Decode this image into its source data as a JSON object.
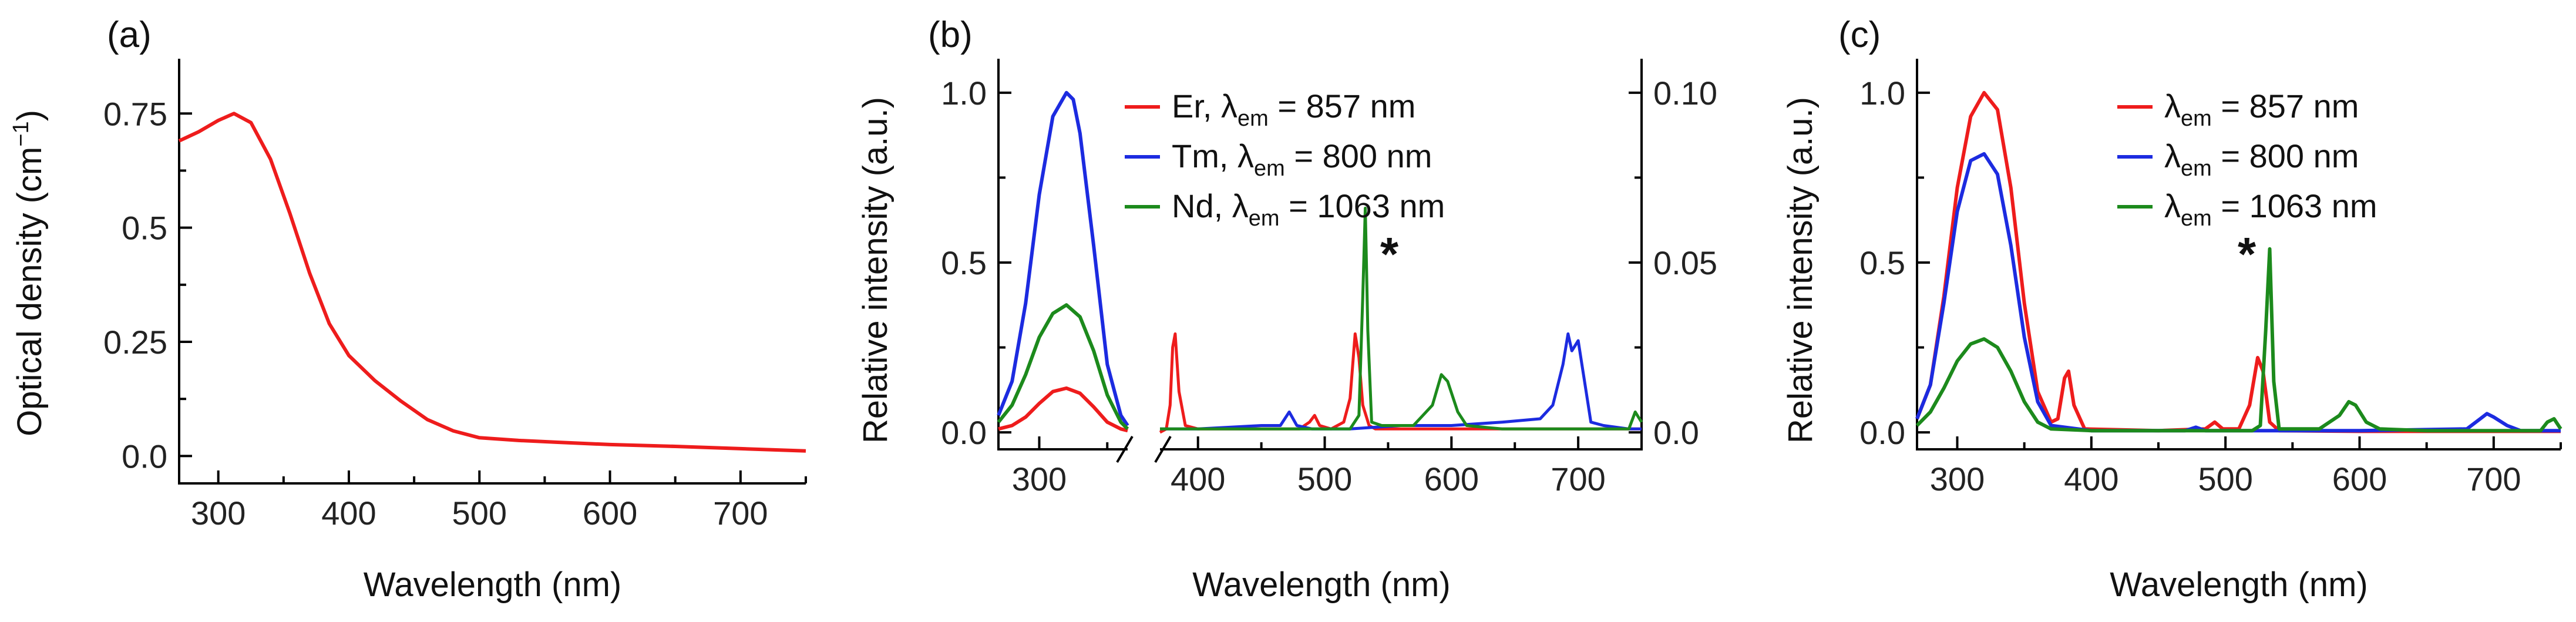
{
  "figure": {
    "colors": {
      "red": "#ee1c1c",
      "blue": "#1c2be0",
      "green": "#1c8a1c",
      "axis": "#000000"
    }
  },
  "chart_data": [
    {
      "type": "line",
      "panel": "(a)",
      "xlabel": "Wavelength (nm)",
      "ylabel": "Optical density (cm",
      "ylabel_sup": "−1",
      "ylabel_close": ")",
      "xlim": [
        270,
        750
      ],
      "ylim": [
        -0.06,
        0.87
      ],
      "xticks": [
        300,
        400,
        500,
        600,
        700
      ],
      "yticks": [
        0.0,
        0.25,
        0.5,
        0.75
      ],
      "ytick_labels": [
        "0.0",
        "0.25",
        "0.5",
        "0.75"
      ],
      "series": [
        {
          "name": "optical density",
          "color": "#ee1c1c",
          "x": [
            270,
            285,
            300,
            312,
            325,
            340,
            355,
            370,
            385,
            400,
            420,
            440,
            460,
            480,
            500,
            530,
            560,
            600,
            650,
            700,
            750
          ],
          "y": [
            0.69,
            0.71,
            0.735,
            0.75,
            0.73,
            0.65,
            0.53,
            0.4,
            0.29,
            0.22,
            0.165,
            0.12,
            0.08,
            0.055,
            0.04,
            0.034,
            0.03,
            0.025,
            0.021,
            0.016,
            0.011
          ]
        }
      ]
    },
    {
      "type": "line",
      "panel": "(b)",
      "xlabel": "Wavelength (nm)",
      "ylabel": "Relative intensity (a.u.)",
      "xlim_left": [
        270,
        365
      ],
      "xlim_right": [
        370,
        750
      ],
      "xticks_left": [
        300
      ],
      "xticks_right": [
        400,
        500,
        600,
        700
      ],
      "ylim": [
        -0.05,
        1.1
      ],
      "yticks": [
        0.0,
        0.5,
        1.0
      ],
      "ytick_labels": [
        "0.0",
        "0.5",
        "1.0"
      ],
      "ylim_right": [
        -0.005,
        0.11
      ],
      "yticks_right": [
        0.0,
        0.05,
        0.1
      ],
      "ytick_labels_right": [
        "0.0",
        "0.05",
        "0.10"
      ],
      "legend": [
        {
          "element": "Er",
          "sub": "em",
          "value": " = 857 nm",
          "color": "#ee1c1c"
        },
        {
          "element": "Tm",
          "sub": "em",
          "value": " = 800 nm",
          "color": "#1c2be0"
        },
        {
          "element": "Nd",
          "sub": "em",
          "value": " = 1063 nm",
          "color": "#1c8a1c"
        }
      ],
      "annotation": "*",
      "series_left": [
        {
          "name": "Er",
          "color": "#ee1c1c",
          "x": [
            270,
            280,
            290,
            300,
            310,
            320,
            330,
            340,
            350,
            360,
            365
          ],
          "y": [
            0.01,
            0.02,
            0.045,
            0.085,
            0.12,
            0.13,
            0.115,
            0.075,
            0.03,
            0.01,
            0.005
          ]
        },
        {
          "name": "Tm",
          "color": "#1c2be0",
          "x": [
            270,
            280,
            290,
            300,
            310,
            320,
            325,
            330,
            340,
            350,
            360,
            365
          ],
          "y": [
            0.05,
            0.15,
            0.38,
            0.7,
            0.93,
            1.0,
            0.98,
            0.88,
            0.55,
            0.2,
            0.05,
            0.02
          ]
        },
        {
          "name": "Nd",
          "color": "#1c8a1c",
          "x": [
            270,
            280,
            290,
            300,
            310,
            320,
            330,
            340,
            350,
            360,
            365
          ],
          "y": [
            0.03,
            0.08,
            0.17,
            0.28,
            0.35,
            0.375,
            0.34,
            0.24,
            0.11,
            0.03,
            0.01
          ]
        }
      ],
      "series_right": [
        {
          "name": "Er",
          "color": "#ee1c1c",
          "x": [
            370,
            375,
            378,
            380,
            382,
            385,
            390,
            400,
            450,
            480,
            488,
            492,
            496,
            505,
            515,
            520,
            524,
            527,
            530,
            535,
            540,
            600,
            700,
            750
          ],
          "y": [
            0.0,
            0.001,
            0.008,
            0.025,
            0.029,
            0.012,
            0.002,
            0.001,
            0.001,
            0.001,
            0.003,
            0.005,
            0.002,
            0.001,
            0.003,
            0.01,
            0.029,
            0.022,
            0.008,
            0.002,
            0.001,
            0.001,
            0.001,
            0.001
          ]
        },
        {
          "name": "Tm",
          "color": "#1c2be0",
          "x": [
            370,
            400,
            450,
            465,
            472,
            478,
            490,
            520,
            560,
            600,
            640,
            670,
            680,
            688,
            692,
            695,
            700,
            705,
            710,
            720,
            740,
            750
          ],
          "y": [
            0.001,
            0.001,
            0.002,
            0.002,
            0.006,
            0.002,
            0.001,
            0.001,
            0.002,
            0.002,
            0.003,
            0.004,
            0.008,
            0.02,
            0.029,
            0.024,
            0.027,
            0.015,
            0.003,
            0.002,
            0.001,
            0.001
          ]
        },
        {
          "name": "Nd",
          "color": "#1c8a1c",
          "x": [
            370,
            400,
            500,
            520,
            527,
            530,
            532,
            534,
            537,
            545,
            570,
            585,
            592,
            597,
            605,
            612,
            640,
            700,
            740,
            745,
            750
          ],
          "y": [
            0.001,
            0.001,
            0.001,
            0.001,
            0.005,
            0.04,
            0.066,
            0.03,
            0.003,
            0.002,
            0.002,
            0.008,
            0.017,
            0.015,
            0.006,
            0.002,
            0.001,
            0.001,
            0.001,
            0.006,
            0.003
          ]
        }
      ]
    },
    {
      "type": "line",
      "panel": "(c)",
      "xlabel": "Wavelength (nm)",
      "ylabel": "Relative intensity (a.u.)",
      "xlim": [
        270,
        750
      ],
      "ylim": [
        -0.05,
        1.1
      ],
      "xticks": [
        300,
        400,
        500,
        600,
        700
      ],
      "yticks": [
        0.0,
        0.5,
        1.0
      ],
      "ytick_labels": [
        "0.0",
        "0.5",
        "1.0"
      ],
      "legend": [
        {
          "element": "",
          "sub": "em",
          "value": " = 857 nm",
          "color": "#ee1c1c"
        },
        {
          "element": "",
          "sub": "em",
          "value": " = 800 nm",
          "color": "#1c2be0"
        },
        {
          "element": "",
          "sub": "em",
          "value": " = 1063 nm",
          "color": "#1c8a1c"
        }
      ],
      "annotation": "*",
      "series": [
        {
          "name": "λem = 857 nm",
          "color": "#ee1c1c",
          "x": [
            270,
            280,
            290,
            300,
            310,
            320,
            330,
            340,
            350,
            360,
            370,
            375,
            380,
            383,
            387,
            395,
            450,
            485,
            492,
            498,
            510,
            518,
            524,
            528,
            533,
            540,
            600,
            700,
            750
          ],
          "y": [
            0.04,
            0.14,
            0.4,
            0.72,
            0.93,
            1.0,
            0.95,
            0.72,
            0.38,
            0.12,
            0.03,
            0.04,
            0.16,
            0.18,
            0.08,
            0.01,
            0.005,
            0.01,
            0.03,
            0.01,
            0.01,
            0.08,
            0.22,
            0.18,
            0.03,
            0.005,
            0.003,
            0.003,
            0.003
          ]
        },
        {
          "name": "λem = 800 nm",
          "color": "#1c2be0",
          "x": [
            270,
            280,
            290,
            300,
            310,
            320,
            330,
            340,
            350,
            360,
            370,
            400,
            470,
            478,
            485,
            520,
            600,
            680,
            690,
            695,
            700,
            710,
            720,
            740,
            750
          ],
          "y": [
            0.04,
            0.14,
            0.38,
            0.65,
            0.8,
            0.82,
            0.76,
            0.55,
            0.28,
            0.09,
            0.02,
            0.005,
            0.005,
            0.015,
            0.005,
            0.005,
            0.005,
            0.01,
            0.04,
            0.055,
            0.045,
            0.02,
            0.005,
            0.005,
            0.005
          ]
        },
        {
          "name": "λem = 1063 nm",
          "color": "#1c8a1c",
          "x": [
            270,
            280,
            290,
            300,
            310,
            320,
            330,
            340,
            350,
            360,
            370,
            400,
            520,
            526,
            530,
            533,
            536,
            540,
            570,
            585,
            592,
            597,
            605,
            615,
            650,
            735,
            740,
            745,
            750
          ],
          "y": [
            0.02,
            0.06,
            0.13,
            0.21,
            0.26,
            0.275,
            0.25,
            0.18,
            0.09,
            0.03,
            0.01,
            0.005,
            0.005,
            0.02,
            0.3,
            0.54,
            0.15,
            0.01,
            0.01,
            0.05,
            0.09,
            0.08,
            0.03,
            0.01,
            0.005,
            0.005,
            0.03,
            0.04,
            0.01
          ]
        }
      ]
    }
  ]
}
